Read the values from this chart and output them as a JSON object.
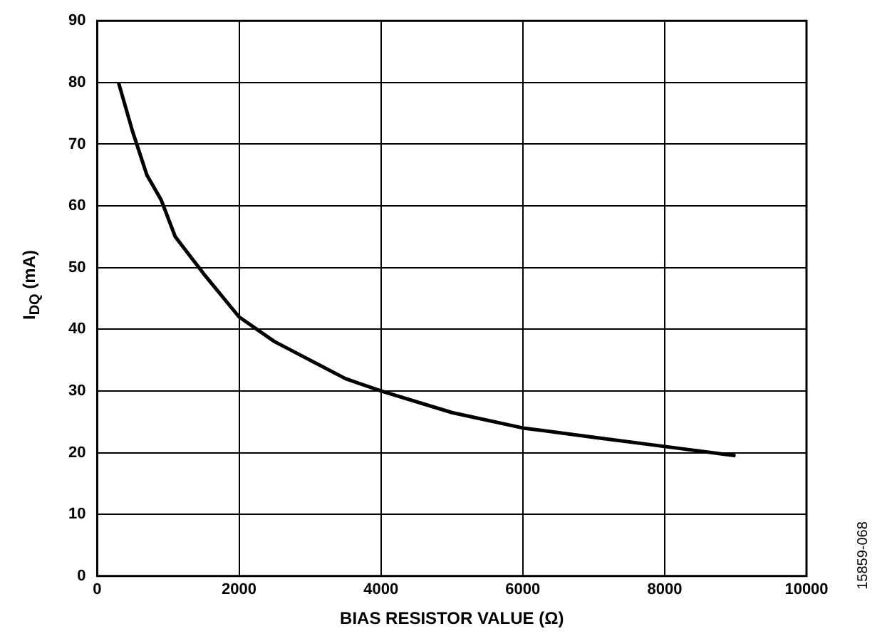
{
  "chart_data": {
    "type": "line",
    "xlabel": "BIAS RESISTOR VALUE (Ω)",
    "ylabel": "I$_{DQ}$ (mA)",
    "annotations": [
      "15859-068"
    ],
    "x": [
      300,
      500,
      700,
      900,
      1000,
      1100,
      1500,
      2000,
      2500,
      3000,
      3500,
      4000,
      5000,
      6000,
      7000,
      8000,
      9000
    ],
    "series": [
      {
        "color": "#000000",
        "values": [
          80,
          72,
          65,
          61,
          58,
          55,
          49,
          42,
          38,
          35,
          32,
          30,
          26.5,
          24,
          22.5,
          21,
          19.5
        ]
      }
    ],
    "xlim": [
      0,
      10000
    ],
    "xticks": [
      0,
      2000,
      4000,
      6000,
      8000,
      10000
    ],
    "ylim": [
      0,
      90
    ],
    "yticks": [
      0,
      10,
      20,
      30,
      40,
      50,
      60,
      70,
      80,
      90
    ],
    "grid": true,
    "legend": false,
    "marker": "none",
    "line_style": "solid"
  }
}
